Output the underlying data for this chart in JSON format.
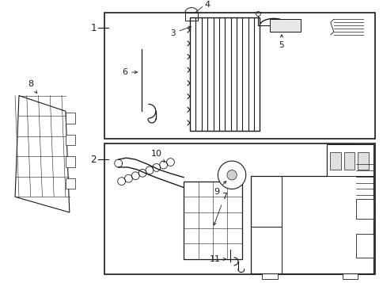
{
  "bg_color": "#ffffff",
  "line_color": "#1a1a1a",
  "fig_width": 4.85,
  "fig_height": 3.57,
  "dpi": 100,
  "gray_light": "#c8c8c8",
  "gray_mid": "#a0a0a0"
}
